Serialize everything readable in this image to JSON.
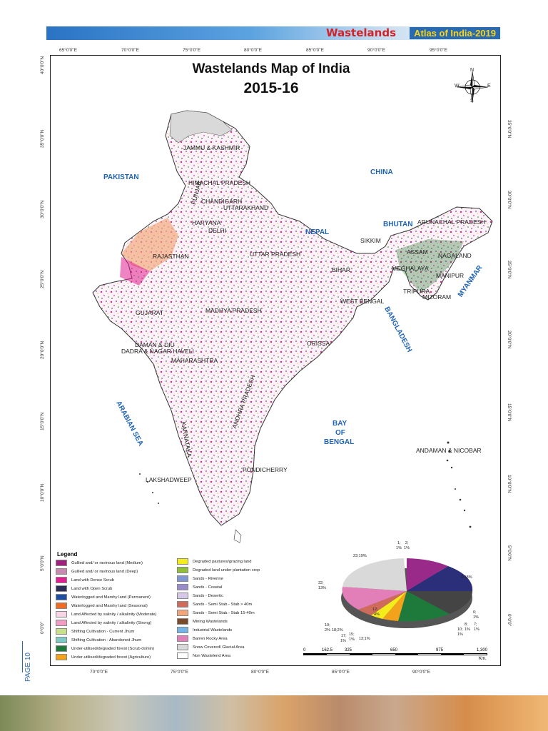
{
  "header": {
    "brand": "Wastelands",
    "atlas": "Atlas of India-2019"
  },
  "map_title": {
    "line1": "Wastelands Map of India",
    "line2": "2015-16"
  },
  "longitudes_top": [
    "65°0'0\"E",
    "70°0'0\"E",
    "75°0'0\"E",
    "80°0'0\"E",
    "85°0'0\"E",
    "90°0'0\"E",
    "95°0'0\"E"
  ],
  "longitudes_bottom": [
    "70°0'0\"E",
    "75°0'0\"E",
    "80°0'0\"E",
    "85°0'0\"E",
    "90°0'0\"E"
  ],
  "latitudes_left": [
    "40°0'0\"N",
    "35°0'0\"N",
    "30°0'0\"N",
    "25°0'0\"N",
    "20°0'0\"N",
    "15°0'0\"N",
    "10°0'0\"N",
    "5°0'0\"N",
    "0°0'0\""
  ],
  "latitudes_right": [
    "35°0'0\"N",
    "30°0'0\"N",
    "25°0'0\"N",
    "20°0'0\"N",
    "15°0'0\"N",
    "10°0'0\"N",
    "5°0'0\"N",
    "0°0'0\""
  ],
  "compass": {
    "n": "N",
    "s": "S",
    "e": "E",
    "w": "W"
  },
  "countries": {
    "pakistan": "PAKISTAN",
    "china": "CHINA",
    "nepal": "NEPAL",
    "bhutan": "BHUTAN",
    "bangladesh": "BANGLADESH",
    "myanmar": "MYANMAR"
  },
  "seas": {
    "arabian": "ARABIAN SEA",
    "bay1": "BAY",
    "bay2": "OF",
    "bay3": "BENGAL"
  },
  "states": {
    "jk": "JAMMU & KASHMIR",
    "hp": "HIMACHAL PRADESH",
    "punjab": "PUNJAB",
    "chandigarh": "CHANDIGARH",
    "uttarakhand": "UTTARAKHAND",
    "haryana": "HARYANA",
    "delhi": "DELHI",
    "rajasthan": "RAJASTHAN",
    "up": "UTTAR PRADESH",
    "sikkim": "SIKKIM",
    "arunachal": "ARUNACHAL PRADESH",
    "assam": "ASSAM",
    "nagaland": "NAGALAND",
    "meghalaya": "MEGHALAYA",
    "manipur": "MANIPUR",
    "bihar": "BIHAR",
    "tripura": "TRIPURA",
    "mizoram": "MIZORAM",
    "wb": "WEST BENGAL",
    "gujarat": "GUJARAT",
    "mp": "MADHYA PRADESH",
    "daman": "DAMAN & DIU",
    "dnh": "DADRA & NAGAR HAVELI",
    "maharashtra": "MAHARASHTRA",
    "odisha": "ORISSA",
    "ap": "ANDHRA PRADESH",
    "karnataka": "KARNATAKA",
    "andaman": "ANDAMAN & NICOBAR",
    "pondicherry": "PONDICHERRY",
    "lakshadweep": "LAKSHADWEEP"
  },
  "legend": {
    "title": "Legend",
    "col1": [
      {
        "label": "Gullied and/ or ravinous land (Medium)",
        "color": "#a0227f"
      },
      {
        "label": "Gullied and/ or ravinous land (Deep)",
        "color": "#c98ab1"
      },
      {
        "label": "Land with Dense Scrub",
        "color": "#e02090"
      },
      {
        "label": "Land with Open Scrub",
        "color": "#2b2f57"
      },
      {
        "label": "Waterlogged and Marshy land (Permanent)",
        "color": "#1f4fa0"
      },
      {
        "label": "Waterlogged and Marshy land (Seasonal)",
        "color": "#f06a21"
      },
      {
        "label": "Land Affected by salinity / alkalinity (Moderate)",
        "color": "#f7d5e6"
      },
      {
        "label": "Land Affected by salinity / alkalinity (Strong)",
        "color": "#f29bc4"
      },
      {
        "label": "Shifting Cultivation - Current Jhum",
        "color": "#c8e08a"
      },
      {
        "label": "Shifting Cultivation - Abandoned Jhum",
        "color": "#7dcbc4"
      },
      {
        "label": "Under-utilised/degraded forest (Scrub domin)",
        "color": "#1e7a3a"
      },
      {
        "label": "Under-utilised/degraded forest (Agriculture)",
        "color": "#f2a31b"
      }
    ],
    "col2": [
      {
        "label": "Degraded pastures/grazing land",
        "color": "#f4ec1b"
      },
      {
        "label": "Degraded land under plantation crop",
        "color": "#8fbf3a"
      },
      {
        "label": "Sands - Riverine",
        "color": "#7e96d6"
      },
      {
        "label": "Sands - Coastal",
        "color": "#9a8ccc"
      },
      {
        "label": "Sands - Desertic",
        "color": "#d8c8e8"
      },
      {
        "label": "Sands - Semi Stab.- Stab > 40m",
        "color": "#cf6b5a"
      },
      {
        "label": "Sands - Semi Stab.- Stab 15-40m",
        "color": "#f2a57a"
      },
      {
        "label": "Mining Wastelands",
        "color": "#7a4a2a"
      },
      {
        "label": "Industrial Wastelands",
        "color": "#74b4e6"
      },
      {
        "label": "Barren Rocky Area",
        "color": "#e27fb8"
      },
      {
        "label": "Snow Covered/ Glacial Area",
        "color": "#d9d9d9"
      },
      {
        "label": "Non Wastelend Area",
        "color": "#ffffff"
      }
    ]
  },
  "pie": {
    "labels": [
      {
        "text": "1;",
        "sub": "1%"
      },
      {
        "text": "2;",
        "sub": "1%"
      },
      {
        "text": "23;19%",
        "sub": ""
      },
      {
        "text": "4;18%",
        "sub": ""
      },
      {
        "text": "22;",
        "sub": "13%"
      },
      {
        "text": "12;",
        "sub": "4%"
      },
      {
        "text": "6;",
        "sub": "1%"
      },
      {
        "text": "7;",
        "sub": "1%"
      },
      {
        "text": "8;",
        "sub": ""
      },
      {
        "text": "10;",
        "sub": "1%"
      },
      {
        "text": "1%",
        "sub": ""
      },
      {
        "text": "19;",
        "sub": "2%"
      },
      {
        "text": "18;2%",
        "sub": ""
      },
      {
        "text": "17;",
        "sub": "1%"
      },
      {
        "text": "15;",
        "sub": "1%"
      },
      {
        "text": "13;1%",
        "sub": ""
      },
      {
        "text": "1%",
        "sub": ""
      }
    ]
  },
  "scale": {
    "ticks": [
      "0",
      "162.5",
      "325",
      "650",
      "975",
      "1,300"
    ],
    "unit": "Km."
  },
  "page_label": "PAGE 10"
}
